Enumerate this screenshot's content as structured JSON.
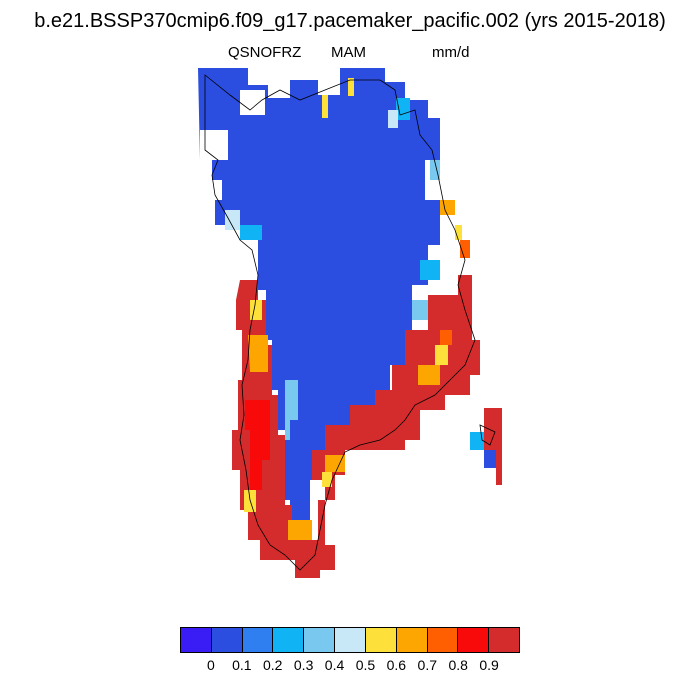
{
  "title": "b.e21.BSSP370cmip6.f09_g17.pacemaker_pacific.002 (yrs 2015-2018)",
  "subtitle": {
    "variable": "QSNOFRZ",
    "season": "MAM",
    "units": "mm/d"
  },
  "colorbar": {
    "colors": [
      "#3a1cf5",
      "#2b4de0",
      "#2f7ff0",
      "#10b4f5",
      "#78c8f0",
      "#c8e8f8",
      "#fde13a",
      "#fda500",
      "#ff5f00",
      "#f80a0a",
      "#d42c2c"
    ],
    "labels": [
      "0",
      "0.1",
      "0.2",
      "0.3",
      "0.4",
      "0.5",
      "0.6",
      "0.7",
      "0.8",
      "0.9"
    ]
  },
  "map": {
    "region": "Greenland",
    "field_levels": {
      "interior": "0.1",
      "southwest_coast": "0.8-0.9",
      "southeast_coast": "0.9",
      "margins": "0.3-0.7"
    }
  }
}
